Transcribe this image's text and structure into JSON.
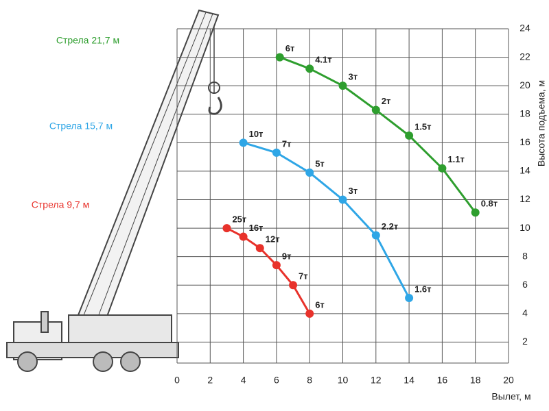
{
  "chart_data": {
    "type": "line",
    "x_label": "Вылет, м",
    "y_label": "Высота подъема, м",
    "xlim": [
      0,
      20
    ],
    "xticks": [
      0,
      2,
      4,
      6,
      8,
      10,
      12,
      14,
      16,
      18,
      20
    ],
    "ylim": [
      0,
      24
    ],
    "yticks": [
      2,
      4,
      6,
      8,
      10,
      12,
      14,
      16,
      18,
      20,
      22,
      24
    ],
    "grid": true,
    "series": [
      {
        "name": "Стрела 21,7 м",
        "color": "#2e9e2e",
        "x": [
          6.2,
          8,
          10,
          12,
          14,
          16,
          18
        ],
        "values": [
          22,
          21.2,
          20,
          18.3,
          16.5,
          14.2,
          11.1
        ],
        "point_labels": [
          "6т",
          "4.1т",
          "3т",
          "2т",
          "1.5т",
          "1.1т",
          "0.8т"
        ]
      },
      {
        "name": "Стрела 15,7 м",
        "color": "#2fa6e6",
        "x": [
          4,
          6,
          8,
          10,
          12,
          14
        ],
        "values": [
          16,
          15.3,
          13.9,
          12,
          9.5,
          5.1
        ],
        "point_labels": [
          "10т",
          "7т",
          "5т",
          "3т",
          "2.2т",
          "1.6т"
        ]
      },
      {
        "name": "Стрела 9,7 м",
        "color": "#e8322b",
        "x": [
          3,
          4,
          5,
          6,
          7,
          8
        ],
        "values": [
          10,
          9.4,
          8.6,
          7.4,
          6,
          4
        ],
        "point_labels": [
          "25т",
          "16т",
          "12т",
          "9т",
          "7т",
          "6т"
        ]
      }
    ]
  }
}
